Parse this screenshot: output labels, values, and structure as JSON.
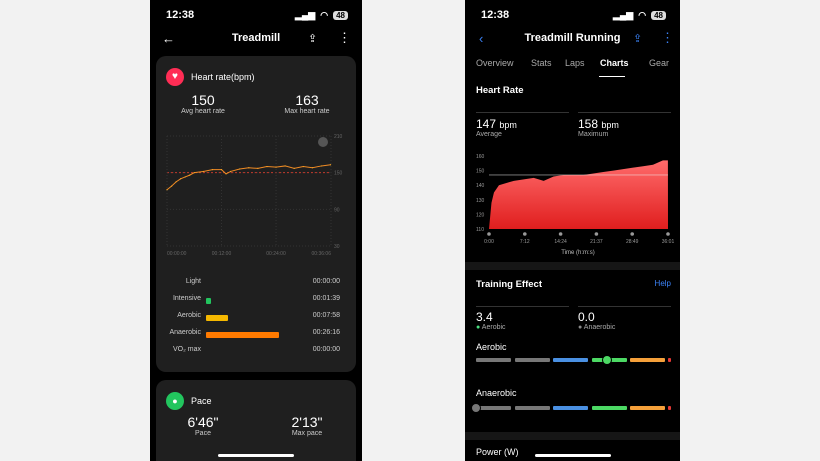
{
  "left": {
    "status": {
      "time": "12:38",
      "battery": "48"
    },
    "nav": {
      "title": "Treadmill"
    },
    "heart": {
      "title": "Heart rate(bpm)",
      "avg": "150",
      "avg_label": "Avg heart rate",
      "max": "163",
      "max_label": "Max heart rate"
    },
    "zones": [
      {
        "name": "Light",
        "time": "00:00:00",
        "fraction": 0,
        "color": "#888888"
      },
      {
        "name": "Intensive",
        "time": "00:01:39",
        "fraction": 0.05,
        "color": "#22c55e"
      },
      {
        "name": "Aerobic",
        "time": "00:07:58",
        "fraction": 0.22,
        "color": "#f5b800"
      },
      {
        "name": "Anaerobic",
        "time": "00:26:16",
        "fraction": 0.73,
        "color": "#ff7a00"
      },
      {
        "name": "VO₂ max",
        "time": "00:00:00",
        "fraction": 0,
        "color": "#888888"
      }
    ],
    "pace": {
      "title": "Pace",
      "pace": "6'46\"",
      "pace_label": "Pace",
      "max": "2'13\"",
      "max_label": "Max pace"
    }
  },
  "right": {
    "status": {
      "time": "12:38",
      "battery": "48"
    },
    "nav": {
      "title": "Treadmill Running"
    },
    "tabs": [
      "Overview",
      "Stats",
      "Laps",
      "Charts",
      "Gear"
    ],
    "active_tab": "Charts",
    "heart": {
      "title": "Heart Rate",
      "avg": "147",
      "avg_unit": "bpm",
      "avg_label": "Average",
      "max": "158",
      "max_unit": "bpm",
      "max_label": "Maximum"
    },
    "training": {
      "title": "Training Effect",
      "help": "Help",
      "aerobic_value": "3.4",
      "aerobic_label": "Aerobic",
      "anaerobic_value": "0.0",
      "anaerobic_label": "Anaerobic",
      "aerobic_scale_label": "Aerobic",
      "anaerobic_scale_label": "Anaerobic",
      "aerobic_level": 3.4,
      "anaerobic_level": 0.0
    },
    "next_section": "Power (W)"
  },
  "chart_data": [
    {
      "type": "line",
      "ylim": [
        30,
        210
      ],
      "yticks": [
        "210",
        "150",
        "90",
        "30"
      ],
      "xticks": [
        "00:00:00",
        "00:12:00",
        "00:24:00",
        "00:36:06"
      ],
      "avg_line": 150,
      "x_minutes": [
        0,
        1,
        2,
        3,
        4,
        5,
        6,
        8,
        10,
        12,
        13,
        14,
        16,
        18,
        20,
        22,
        24,
        26,
        28,
        30,
        32,
        34,
        36
      ],
      "values": [
        122,
        128,
        135,
        140,
        143,
        146,
        150,
        152,
        155,
        155,
        148,
        152,
        156,
        158,
        157,
        160,
        159,
        161,
        157,
        160,
        158,
        161,
        163
      ]
    },
    {
      "type": "area",
      "title": "Heart Rate",
      "xlabel": "Time (h:m:s)",
      "ylim": [
        110,
        160
      ],
      "yticks": [
        "160",
        "150",
        "140",
        "130",
        "120",
        "110"
      ],
      "xticks": [
        "0:00",
        "7:12",
        "14:24",
        "21:37",
        "28:49",
        "36:01"
      ],
      "avg_line": 147,
      "x_minutes": [
        0,
        0.5,
        1,
        2,
        3,
        5,
        7,
        9,
        11,
        13,
        15,
        17,
        19,
        21,
        23,
        25,
        27,
        29,
        31,
        33,
        35,
        36
      ],
      "values": [
        110,
        128,
        135,
        140,
        141,
        143,
        144,
        145,
        143,
        146,
        147,
        147,
        147,
        148,
        149,
        150,
        151,
        152,
        153,
        154,
        157,
        157
      ]
    }
  ]
}
